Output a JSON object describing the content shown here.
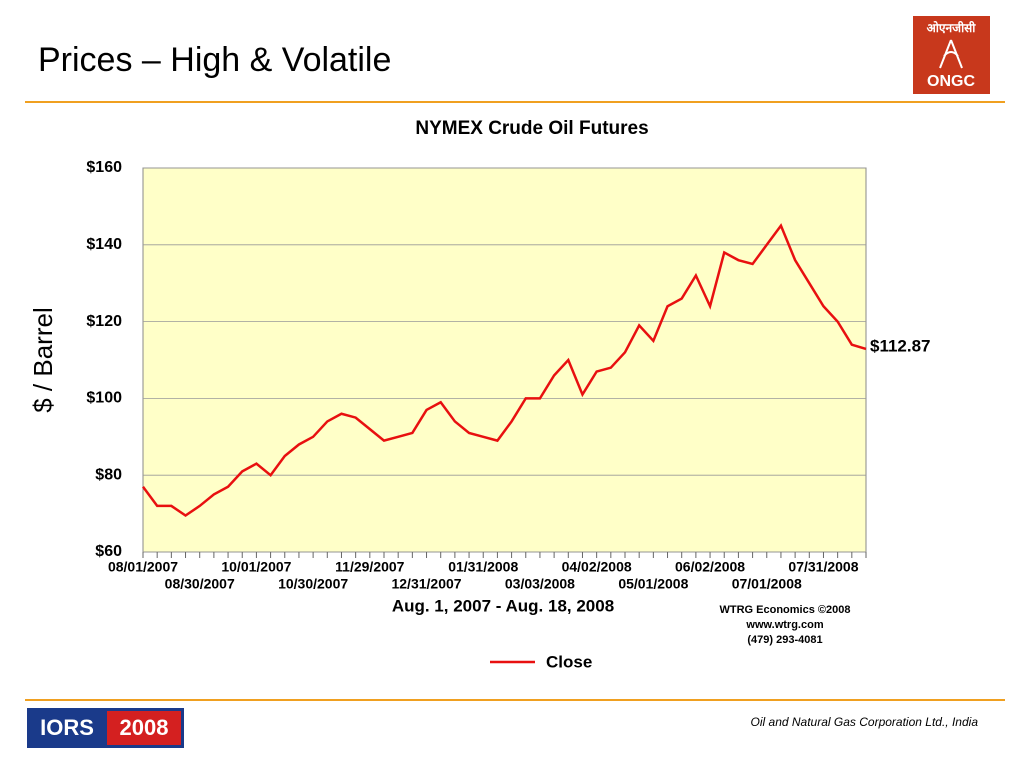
{
  "slide": {
    "title": "Prices – High & Volatile",
    "footer": "Oil and Natural Gas Corporation Ltd., India",
    "logo_top": {
      "hindi": "ओएनजीसी",
      "english": "ONGC"
    },
    "logo_bottom": {
      "left": "IORS",
      "right": "2008"
    }
  },
  "chart_data": {
    "type": "line",
    "title": "NYMEX Crude Oil Futures",
    "subtitle": "Aug. 1, 2007 - Aug. 18, 2008",
    "y_label": "$ / Barrel",
    "source": [
      "WTRG Economics  ©2008",
      "www.wtrg.com",
      "(479) 293-4081"
    ],
    "categories": [
      "08/01/2007",
      null,
      null,
      null,
      "08/30/2007",
      null,
      null,
      null,
      "10/01/2007",
      null,
      null,
      null,
      "10/30/2007",
      null,
      null,
      null,
      "11/29/2007",
      null,
      null,
      null,
      "12/31/2007",
      null,
      null,
      null,
      "01/31/2008",
      null,
      null,
      null,
      "03/03/2008",
      null,
      null,
      null,
      "04/02/2008",
      null,
      null,
      null,
      "05/01/2008",
      null,
      null,
      null,
      "06/02/2008",
      null,
      null,
      null,
      "07/01/2008",
      null,
      null,
      null,
      "07/31/2008",
      null,
      null,
      null
    ],
    "series": [
      {
        "name": "Close",
        "color": "#e81010",
        "values": [
          77,
          72,
          72,
          69.5,
          72,
          75,
          77,
          81,
          83,
          80,
          85,
          88,
          90,
          94,
          96,
          95,
          92,
          89,
          90,
          91,
          97,
          99,
          94,
          91,
          90,
          89,
          94,
          100,
          100,
          106,
          110,
          101,
          107,
          108,
          112,
          119,
          115,
          124,
          126,
          132,
          124,
          138,
          136,
          135,
          140,
          145,
          136,
          130,
          124,
          120,
          114,
          112.87
        ],
        "value_labels": [
          null,
          null,
          null,
          null,
          null,
          null,
          null,
          null,
          null,
          null,
          null,
          null,
          null,
          null,
          null,
          null,
          null,
          null,
          null,
          null,
          null,
          null,
          null,
          null,
          null,
          null,
          null,
          null,
          null,
          null,
          null,
          null,
          null,
          null,
          null,
          null,
          null,
          null,
          null,
          null,
          null,
          null,
          null,
          null,
          null,
          null,
          null,
          null,
          null,
          null,
          null,
          "$112.87"
        ]
      }
    ],
    "ylim": [
      60,
      160
    ],
    "yticks": [
      {
        "value": 60,
        "label": "$60"
      },
      {
        "value": 80,
        "label": "$80"
      },
      {
        "value": 100,
        "label": "$100"
      },
      {
        "value": 120,
        "label": "$120"
      },
      {
        "value": 140,
        "label": "$140"
      },
      {
        "value": 160,
        "label": "$160"
      }
    ],
    "grid": true,
    "legend": "bottom"
  }
}
